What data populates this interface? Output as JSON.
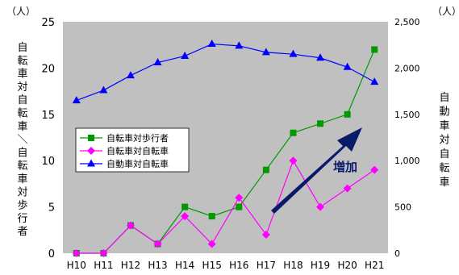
{
  "chart_data": {
    "type": "line",
    "categories": [
      "H10",
      "H11",
      "H12",
      "H13",
      "H14",
      "H15",
      "H16",
      "H17",
      "H18",
      "H19",
      "H20",
      "H21"
    ],
    "series": [
      {
        "name": "自転車対歩行者",
        "axis": "left",
        "color": "#009900",
        "marker": "square",
        "values": [
          0,
          0,
          3,
          1,
          5,
          4,
          5,
          9,
          13,
          14,
          15,
          22
        ]
      },
      {
        "name": "自転車対自転車",
        "axis": "left",
        "color": "#ff00ff",
        "marker": "diamond",
        "values": [
          0,
          0,
          3,
          1,
          4,
          1,
          6,
          2,
          10,
          5,
          7,
          9
        ]
      },
      {
        "name": "自動車対自転車",
        "axis": "right",
        "color": "#0000ff",
        "marker": "triangle",
        "values": [
          1650,
          1760,
          1920,
          2060,
          2130,
          2260,
          2240,
          2170,
          2150,
          2110,
          2010,
          1850
        ]
      }
    ],
    "left_axis": {
      "ylim": [
        0,
        25
      ],
      "ticks": [
        "0",
        "5",
        "10",
        "15",
        "20",
        "25"
      ],
      "unit": "（人）",
      "label": "自転車対自転車／自転車対歩行者"
    },
    "right_axis": {
      "ylim": [
        0,
        2500
      ],
      "ticks": [
        "0",
        "500",
        "1,000",
        "1,500",
        "2,000",
        "2,500"
      ],
      "unit": "（人）",
      "label": "自動車対自転車"
    },
    "annotation": {
      "text": "増加",
      "color": "#0a1a6b"
    },
    "plot_background": "#c0c0c0",
    "grid": false,
    "legend": "left-middle"
  }
}
